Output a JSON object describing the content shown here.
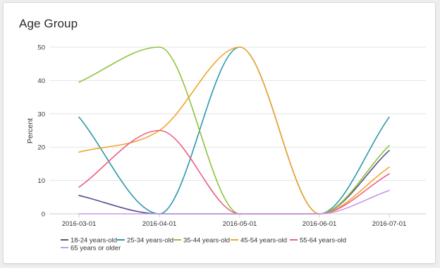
{
  "chart_data": {
    "type": "line",
    "title": "Age Group",
    "xlabel": "",
    "ylabel": "Percent",
    "categories": [
      "2016-03-01",
      "2016-04-01",
      "2016-05-01",
      "2016-06-01",
      "2016-07-01"
    ],
    "ylim": [
      0,
      50
    ],
    "yticks": [
      0,
      10,
      20,
      30,
      40,
      50
    ],
    "grid": true,
    "legend": "bottom",
    "series": [
      {
        "name": "18-24 years-old",
        "color": "#5b4e8c",
        "values": [
          5.5,
          0,
          0,
          0,
          19
        ]
      },
      {
        "name": "25-34 years-old",
        "color": "#2b98aa",
        "values": [
          29,
          0,
          50,
          0,
          29
        ]
      },
      {
        "name": "35-44 years-old",
        "color": "#8dc33a",
        "values": [
          39.5,
          50,
          0,
          0,
          20.5
        ]
      },
      {
        "name": "45-54 years-old",
        "color": "#f2a42a",
        "values": [
          18.5,
          25,
          50,
          0,
          14
        ]
      },
      {
        "name": "55-64 years-old",
        "color": "#ee5f83",
        "values": [
          8,
          25,
          0,
          0,
          12
        ]
      },
      {
        "name": "65 years or older",
        "color": "#c59be8",
        "values": [
          0,
          0,
          0,
          0,
          7
        ]
      }
    ]
  }
}
